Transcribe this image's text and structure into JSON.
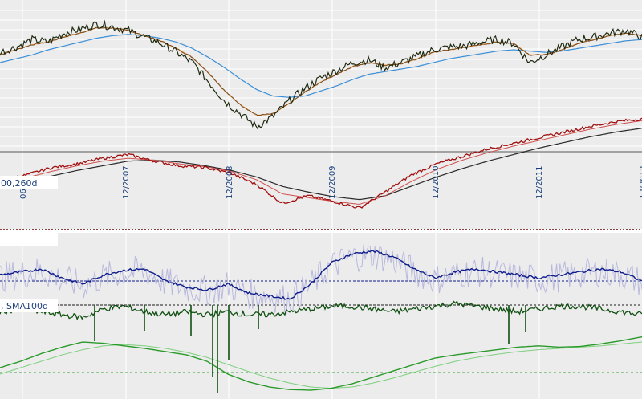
{
  "colors": {
    "panel_bg": "#ececec",
    "grid": "#ffffff",
    "price": "#1f2a10",
    "price_up": "#2e6b1a",
    "sma_short": "#e8a050",
    "sma_mid": "#7a4a20",
    "sma_long": "#3a8fd8",
    "rs_main": "#a01010",
    "rs_sma_fast": "#d05050",
    "rs_sma_slow": "#2a2a2a",
    "osc_fast": "#b4b4dc",
    "osc_slow": "#101e8c",
    "osc_dark_green": "#0f5010",
    "osc_green": "#2a9a2a",
    "osc_light_green": "#7ccf7c",
    "ref_dotted": "#101e8c",
    "ref_dashed_dark": "#1a1a1a",
    "ref_dashed_green": "#3aa03a",
    "separator": "#6a0000"
  },
  "legend": {
    "rs_panel_label": "00,260d",
    "osc_panel_label": ", SMA100d"
  },
  "chart_data": [
    {
      "type": "line",
      "panel": "price",
      "x_tick_labels": [
        "06",
        "12/2007",
        "12/2008",
        "12/2009",
        "12/2010",
        "12/2011",
        "12/2012"
      ],
      "series": [
        {
          "role": "price",
          "values": [
            0.78,
            0.82,
            0.88,
            0.86,
            0.93,
            0.96,
            1.0,
            0.98,
            0.95,
            0.9,
            0.85,
            0.78,
            0.7,
            0.55,
            0.4,
            0.3,
            0.2,
            0.28,
            0.4,
            0.5,
            0.58,
            0.64,
            0.7,
            0.72,
            0.66,
            0.7,
            0.75,
            0.8,
            0.82,
            0.83,
            0.86,
            0.88,
            0.85,
            0.7,
            0.76,
            0.82,
            0.88,
            0.9,
            0.93,
            0.95,
            0.9
          ]
        },
        {
          "role": "sma_short",
          "values": [
            0.76,
            0.8,
            0.84,
            0.86,
            0.9,
            0.93,
            0.97,
            0.97,
            0.95,
            0.91,
            0.87,
            0.81,
            0.74,
            0.62,
            0.48,
            0.37,
            0.29,
            0.3,
            0.38,
            0.47,
            0.55,
            0.61,
            0.67,
            0.7,
            0.68,
            0.69,
            0.73,
            0.78,
            0.8,
            0.82,
            0.84,
            0.86,
            0.85,
            0.76,
            0.76,
            0.8,
            0.85,
            0.88,
            0.91,
            0.93,
            0.91
          ]
        },
        {
          "role": "sma_long",
          "values": [
            0.7,
            0.73,
            0.76,
            0.8,
            0.83,
            0.86,
            0.89,
            0.91,
            0.92,
            0.91,
            0.89,
            0.86,
            0.81,
            0.74,
            0.66,
            0.57,
            0.49,
            0.44,
            0.43,
            0.44,
            0.48,
            0.52,
            0.57,
            0.61,
            0.63,
            0.65,
            0.67,
            0.7,
            0.73,
            0.75,
            0.77,
            0.79,
            0.8,
            0.79,
            0.78,
            0.79,
            0.81,
            0.83,
            0.85,
            0.87,
            0.88
          ]
        }
      ]
    },
    {
      "type": "line",
      "panel": "relative-strength",
      "series": [
        {
          "role": "rs_main",
          "values": [
            0.35,
            0.4,
            0.48,
            0.52,
            0.58,
            0.62,
            0.55,
            0.5,
            0.48,
            0.42,
            0.3,
            0.1,
            0.18,
            0.12,
            0.05,
            0.22,
            0.4,
            0.52,
            0.6,
            0.68,
            0.74,
            0.8,
            0.86,
            0.92,
            0.97,
            1.0
          ]
        },
        {
          "role": "rs_sma_fast",
          "values": [
            0.32,
            0.37,
            0.44,
            0.5,
            0.55,
            0.58,
            0.56,
            0.52,
            0.49,
            0.44,
            0.35,
            0.2,
            0.16,
            0.12,
            0.09,
            0.18,
            0.33,
            0.46,
            0.56,
            0.64,
            0.71,
            0.77,
            0.83,
            0.89,
            0.94,
            0.98
          ]
        },
        {
          "role": "rs_sma_slow",
          "values": [
            0.28,
            0.33,
            0.39,
            0.45,
            0.5,
            0.55,
            0.56,
            0.54,
            0.5,
            0.45,
            0.38,
            0.28,
            0.22,
            0.17,
            0.14,
            0.18,
            0.28,
            0.38,
            0.47,
            0.55,
            0.62,
            0.69,
            0.75,
            0.81,
            0.86,
            0.9
          ]
        }
      ]
    },
    {
      "type": "line",
      "panel": "oscillators",
      "series": [
        {
          "role": "osc_slow",
          "values": [
            0.5,
            0.55,
            0.6,
            0.45,
            0.35,
            0.5,
            0.58,
            0.6,
            0.4,
            0.3,
            0.25,
            0.35,
            0.2,
            0.15,
            0.1,
            0.35,
            0.7,
            0.85,
            0.9,
            0.8,
            0.6,
            0.45,
            0.55,
            0.6,
            0.55,
            0.5,
            0.45,
            0.5,
            0.55,
            0.6,
            0.55,
            0.4
          ]
        },
        {
          "role": "osc_dark_green",
          "values": [
            0.45,
            0.5,
            0.45,
            0.4,
            0.35,
            0.5,
            0.55,
            0.45,
            0.4,
            0.45,
            0.4,
            0.45,
            0.4,
            0.4,
            0.45,
            0.5,
            0.55,
            0.55,
            0.5,
            0.45,
            0.5,
            0.55,
            0.6,
            0.55,
            0.5,
            0.45,
            0.5,
            0.55,
            0.55,
            0.5,
            0.45,
            0.4
          ]
        },
        {
          "role": "osc_green",
          "values": [
            0.4,
            0.5,
            0.62,
            0.72,
            0.8,
            0.78,
            0.74,
            0.7,
            0.65,
            0.6,
            0.5,
            0.3,
            0.18,
            0.1,
            0.06,
            0.05,
            0.08,
            0.15,
            0.25,
            0.35,
            0.45,
            0.55,
            0.6,
            0.64,
            0.68,
            0.72,
            0.74,
            0.72,
            0.73,
            0.77,
            0.82,
            0.88
          ]
        },
        {
          "role": "osc_light_green",
          "values": [
            0.3,
            0.4,
            0.5,
            0.6,
            0.68,
            0.74,
            0.76,
            0.74,
            0.7,
            0.64,
            0.56,
            0.45,
            0.34,
            0.24,
            0.16,
            0.1,
            0.08,
            0.1,
            0.16,
            0.24,
            0.33,
            0.42,
            0.5,
            0.56,
            0.61,
            0.65,
            0.68,
            0.7,
            0.72,
            0.74,
            0.77,
            0.8
          ]
        }
      ]
    }
  ]
}
